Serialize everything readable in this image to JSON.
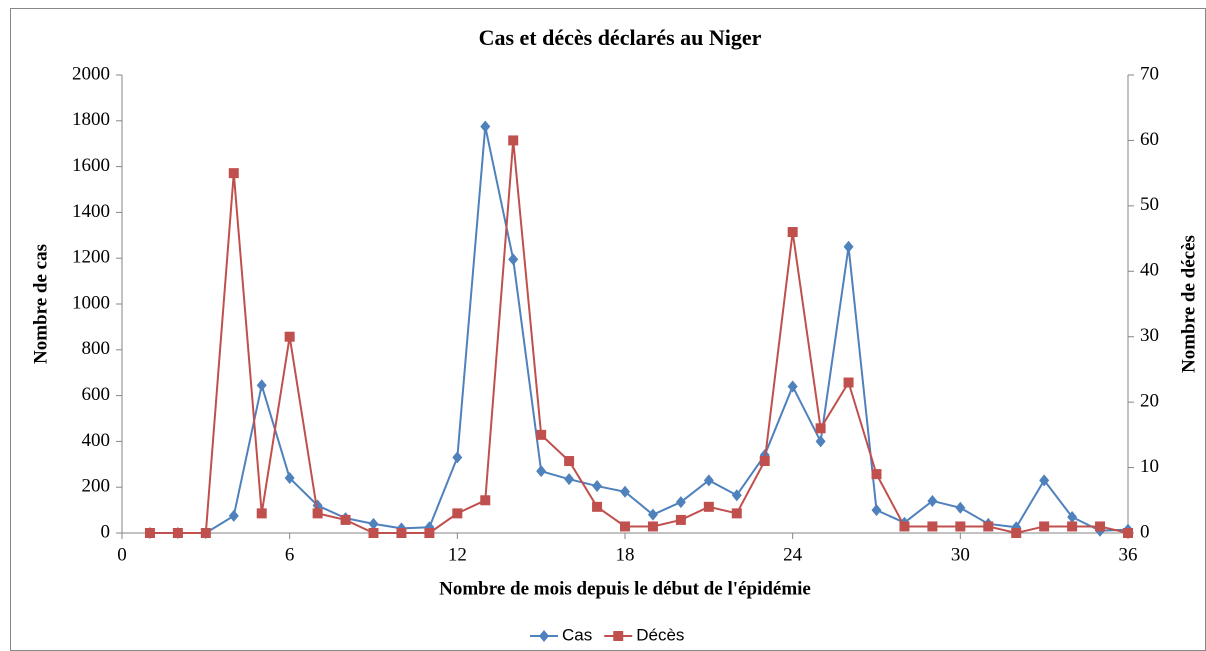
{
  "chart_data": {
    "type": "line",
    "title": "Cas et décès déclarés au Niger",
    "xlabel": "Nombre de mois depuis le début de l'épidémie",
    "ylabel": "Nombre de cas",
    "y2label": "Nombre de décès",
    "x": [
      1,
      2,
      3,
      4,
      5,
      6,
      7,
      8,
      9,
      10,
      11,
      12,
      13,
      14,
      15,
      16,
      17,
      18,
      19,
      20,
      21,
      22,
      23,
      24,
      25,
      26,
      27,
      28,
      29,
      30,
      31,
      32,
      33,
      34,
      35,
      36
    ],
    "series": [
      {
        "name": "Cas",
        "color": "#4f81bd",
        "marker": "diamond",
        "values": [
          0,
          0,
          0,
          75,
          645,
          240,
          120,
          65,
          40,
          20,
          25,
          330,
          1775,
          1195,
          270,
          235,
          205,
          180,
          80,
          135,
          230,
          165,
          340,
          640,
          400,
          1250,
          100,
          45,
          140,
          110,
          40,
          25,
          230,
          70,
          10,
          15
        ]
      },
      {
        "name": "Décès",
        "color": "#c0504d",
        "marker": "square",
        "axis": "y2",
        "values": [
          0,
          0,
          0,
          55,
          3,
          30,
          3,
          2,
          0,
          0,
          0,
          3,
          5,
          60,
          15,
          11,
          4,
          1,
          1,
          2,
          4,
          3,
          11,
          46,
          16,
          23,
          9,
          1,
          1,
          1,
          1,
          0,
          1,
          1,
          1,
          0
        ]
      }
    ],
    "xlim": [
      0,
      36
    ],
    "xticks": [
      0,
      6,
      12,
      18,
      24,
      30,
      36
    ],
    "ylim": [
      0,
      2000
    ],
    "yticks": [
      0,
      200,
      400,
      600,
      800,
      1000,
      1200,
      1400,
      1600,
      1800,
      2000
    ],
    "y2lim": [
      0,
      70
    ],
    "y2ticks": [
      0,
      10,
      20,
      30,
      40,
      50,
      60,
      70
    ],
    "grid": false,
    "legend": "bottom"
  }
}
